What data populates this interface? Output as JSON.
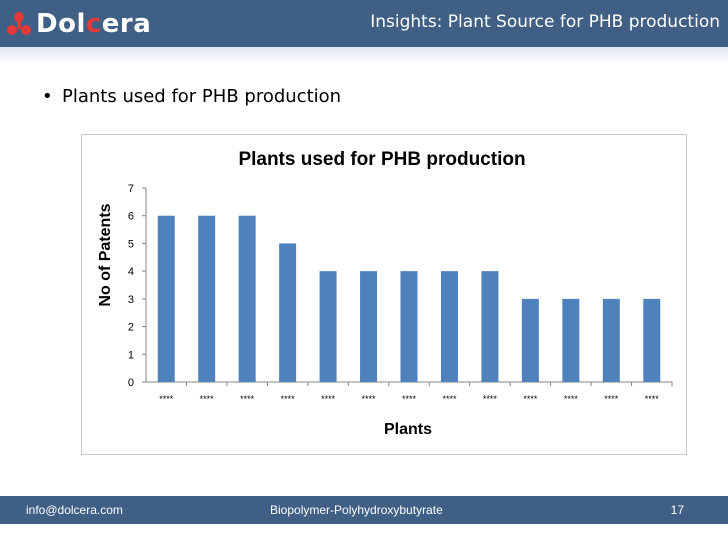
{
  "header": {
    "logo_text_1": "Dol",
    "logo_text_2": "c",
    "logo_text_3": "era",
    "title": "Insights: Plant Source for PHB production"
  },
  "bullet_text": "Plants used for PHB production",
  "chart_data": {
    "type": "bar",
    "title": "Plants used for PHB production",
    "xlabel": "Plants",
    "ylabel": "No of Patents",
    "categories": [
      "****",
      "****",
      "****",
      "****",
      "****",
      "****",
      "****",
      "****",
      "****",
      "****",
      "****",
      "****",
      "****"
    ],
    "values": [
      6,
      6,
      6,
      5,
      4,
      4,
      4,
      4,
      4,
      3,
      3,
      3,
      3
    ],
    "ylim": [
      0,
      7
    ],
    "yticks": [
      0,
      1,
      2,
      3,
      4,
      5,
      6,
      7
    ],
    "bar_color": "#4f81bd",
    "grid": false,
    "legend": "none"
  },
  "footer": {
    "email": "info@dolcera.com",
    "topic": "Biopolymer-Polyhydroxybutyrate",
    "page": "17"
  },
  "colors": {
    "header_bg": "#3f5f85",
    "logo_accent": "#e23a3a"
  }
}
